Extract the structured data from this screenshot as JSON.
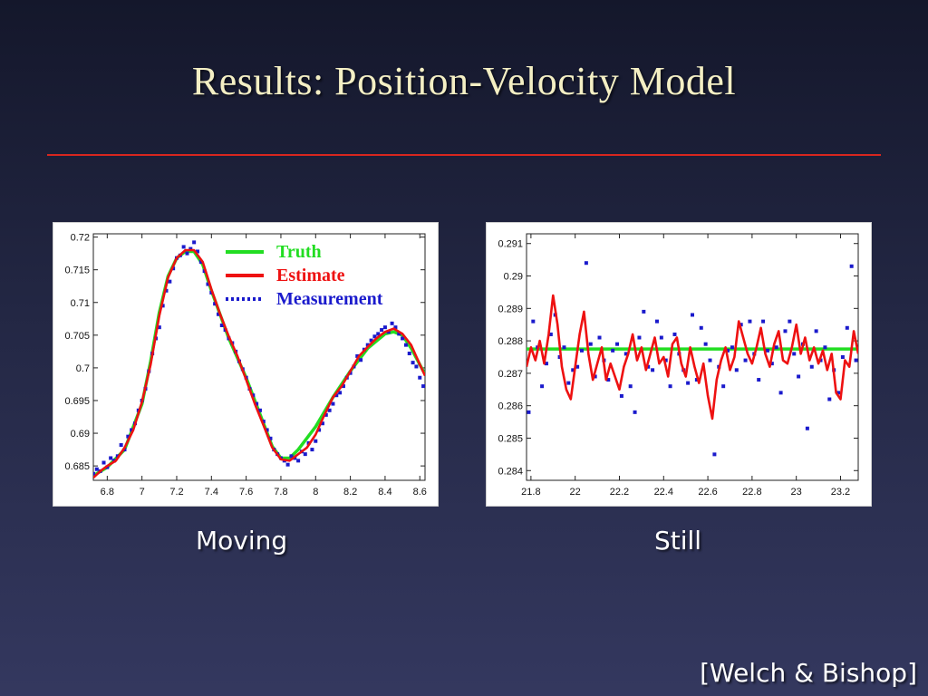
{
  "slide": {
    "title": "Results: Position-Velocity Model",
    "citation": "[Welch & Bishop]"
  },
  "colors": {
    "truth": "#22dd22",
    "estimate": "#ee1111",
    "measurement": "#1a1acc",
    "rule": "#d7261f"
  },
  "chart_data": [
    {
      "type": "line",
      "caption": "Moving",
      "xlim": [
        6.72,
        8.63
      ],
      "ylim": [
        0.6828,
        0.7205
      ],
      "xticks": [
        "6.8",
        "7",
        "7.2",
        "7.4",
        "7.6",
        "7.8",
        "8",
        "8.2",
        "8.4",
        "8.6"
      ],
      "yticks": [
        "0.685",
        "0.69",
        "0.695",
        "0.7",
        "0.705",
        "0.71",
        "0.715",
        "0.72"
      ],
      "legend": {
        "position": "top-right",
        "entries": [
          "Truth",
          "Estimate",
          "Measurement"
        ]
      },
      "series": [
        {
          "name": "Truth",
          "kind": "line",
          "x": [
            6.72,
            6.8,
            6.9,
            7.0,
            7.05,
            7.1,
            7.15,
            7.2,
            7.25,
            7.3,
            7.35,
            7.4,
            7.5,
            7.6,
            7.7,
            7.75,
            7.8,
            7.85,
            7.9,
            8.0,
            8.1,
            8.2,
            8.3,
            8.4,
            8.45,
            8.5,
            8.55,
            8.63
          ],
          "y": [
            0.6835,
            0.6848,
            0.6875,
            0.6945,
            0.701,
            0.7085,
            0.714,
            0.7168,
            0.7178,
            0.7178,
            0.7158,
            0.7118,
            0.7045,
            0.6985,
            0.6915,
            0.688,
            0.6862,
            0.6862,
            0.6875,
            0.691,
            0.6955,
            0.6995,
            0.703,
            0.7052,
            0.7055,
            0.705,
            0.703,
            0.699
          ]
        },
        {
          "name": "Estimate",
          "kind": "line",
          "x": [
            6.72,
            6.76,
            6.8,
            6.85,
            6.9,
            6.95,
            7.0,
            7.05,
            7.1,
            7.15,
            7.2,
            7.25,
            7.3,
            7.35,
            7.4,
            7.45,
            7.5,
            7.55,
            7.6,
            7.65,
            7.7,
            7.75,
            7.8,
            7.85,
            7.9,
            7.95,
            8.0,
            8.05,
            8.1,
            8.15,
            8.2,
            8.25,
            8.3,
            8.35,
            8.4,
            8.45,
            8.5,
            8.55,
            8.6,
            8.63
          ],
          "y": [
            0.6832,
            0.6842,
            0.685,
            0.6858,
            0.6878,
            0.6905,
            0.6948,
            0.7005,
            0.708,
            0.7138,
            0.7168,
            0.718,
            0.718,
            0.7162,
            0.712,
            0.7082,
            0.7048,
            0.7018,
            0.6982,
            0.6945,
            0.6912,
            0.6878,
            0.686,
            0.6858,
            0.6868,
            0.6878,
            0.6898,
            0.6928,
            0.6955,
            0.6972,
            0.6995,
            0.7018,
            0.7032,
            0.7045,
            0.7055,
            0.706,
            0.7052,
            0.7035,
            0.7005,
            0.6988
          ]
        },
        {
          "name": "Measurement",
          "kind": "points",
          "x": [
            6.72,
            6.74,
            6.76,
            6.78,
            6.8,
            6.82,
            6.84,
            6.86,
            6.88,
            6.9,
            6.92,
            6.94,
            6.96,
            6.98,
            7.0,
            7.02,
            7.04,
            7.06,
            7.08,
            7.1,
            7.12,
            7.14,
            7.16,
            7.18,
            7.2,
            7.22,
            7.24,
            7.26,
            7.28,
            7.3,
            7.32,
            7.34,
            7.36,
            7.38,
            7.4,
            7.42,
            7.44,
            7.46,
            7.48,
            7.5,
            7.52,
            7.54,
            7.56,
            7.58,
            7.6,
            7.62,
            7.64,
            7.66,
            7.68,
            7.7,
            7.72,
            7.74,
            7.76,
            7.78,
            7.8,
            7.82,
            7.84,
            7.86,
            7.88,
            7.9,
            7.92,
            7.94,
            7.96,
            7.98,
            8.0,
            8.02,
            8.04,
            8.06,
            8.08,
            8.1,
            8.12,
            8.14,
            8.16,
            8.18,
            8.2,
            8.22,
            8.24,
            8.26,
            8.28,
            8.3,
            8.32,
            8.34,
            8.36,
            8.38,
            8.4,
            8.42,
            8.44,
            8.46,
            8.48,
            8.5,
            8.52,
            8.54,
            8.56,
            8.58,
            8.6,
            8.62
          ],
          "y": [
            0.6838,
            0.6845,
            0.6842,
            0.6855,
            0.6848,
            0.6862,
            0.6858,
            0.6865,
            0.6882,
            0.6875,
            0.6895,
            0.6905,
            0.6915,
            0.6935,
            0.695,
            0.6968,
            0.6995,
            0.7022,
            0.7045,
            0.7062,
            0.7095,
            0.7118,
            0.7132,
            0.7152,
            0.7168,
            0.7172,
            0.7185,
            0.7175,
            0.7182,
            0.7192,
            0.7178,
            0.7162,
            0.7148,
            0.7128,
            0.7115,
            0.7098,
            0.7082,
            0.7065,
            0.7058,
            0.7045,
            0.7038,
            0.7025,
            0.701,
            0.6998,
            0.6985,
            0.6968,
            0.6958,
            0.6945,
            0.6935,
            0.6918,
            0.6905,
            0.6892,
            0.6875,
            0.6868,
            0.6862,
            0.6858,
            0.6852,
            0.6865,
            0.6862,
            0.6858,
            0.6872,
            0.6868,
            0.6885,
            0.6875,
            0.6888,
            0.6905,
            0.6915,
            0.6928,
            0.6935,
            0.6945,
            0.6958,
            0.6962,
            0.6972,
            0.6985,
            0.6992,
            0.7002,
            0.7018,
            0.7012,
            0.7028,
            0.7035,
            0.7042,
            0.7048,
            0.7052,
            0.7058,
            0.7062,
            0.7055,
            0.7068,
            0.7062,
            0.7052,
            0.7045,
            0.7035,
            0.7022,
            0.7008,
            0.7002,
            0.6985,
            0.6972
          ]
        }
      ]
    },
    {
      "type": "line",
      "caption": "Still",
      "xlim": [
        21.78,
        23.28
      ],
      "ylim": [
        0.2837,
        0.2913
      ],
      "xticks": [
        "21.8",
        "22",
        "22.2",
        "22.4",
        "22.6",
        "22.8",
        "23",
        "23.2"
      ],
      "yticks": [
        "0.284",
        "0.285",
        "0.286",
        "0.287",
        "0.288",
        "0.289",
        "0.29",
        "0.291"
      ],
      "series": [
        {
          "name": "Truth",
          "kind": "line",
          "x": [
            21.78,
            23.28
          ],
          "y": [
            0.28775,
            0.28775
          ]
        },
        {
          "name": "Estimate",
          "kind": "line",
          "x": [
            21.78,
            21.8,
            21.82,
            21.84,
            21.86,
            21.88,
            21.9,
            21.92,
            21.94,
            21.96,
            21.98,
            22.0,
            22.02,
            22.04,
            22.06,
            22.08,
            22.1,
            22.12,
            22.14,
            22.16,
            22.18,
            22.2,
            22.22,
            22.24,
            22.26,
            22.28,
            22.3,
            22.32,
            22.34,
            22.36,
            22.38,
            22.4,
            22.42,
            22.44,
            22.46,
            22.48,
            22.5,
            22.52,
            22.54,
            22.56,
            22.58,
            22.6,
            22.62,
            22.64,
            22.66,
            22.68,
            22.7,
            22.72,
            22.74,
            22.76,
            22.78,
            22.8,
            22.82,
            22.84,
            22.86,
            22.88,
            22.9,
            22.92,
            22.94,
            22.96,
            22.98,
            23.0,
            23.02,
            23.04,
            23.06,
            23.08,
            23.1,
            23.12,
            23.14,
            23.16,
            23.18,
            23.2,
            23.22,
            23.24,
            23.26,
            23.28
          ],
          "y": [
            0.2872,
            0.2878,
            0.2874,
            0.288,
            0.2873,
            0.2882,
            0.2894,
            0.2885,
            0.2872,
            0.2865,
            0.2862,
            0.2872,
            0.2882,
            0.2889,
            0.2876,
            0.2868,
            0.2873,
            0.2878,
            0.2868,
            0.2873,
            0.2869,
            0.2865,
            0.2872,
            0.2876,
            0.2882,
            0.2874,
            0.2878,
            0.2871,
            0.2876,
            0.2881,
            0.2873,
            0.2875,
            0.2869,
            0.2879,
            0.2881,
            0.2873,
            0.2869,
            0.2878,
            0.2872,
            0.2867,
            0.2873,
            0.2863,
            0.2856,
            0.2868,
            0.2874,
            0.2878,
            0.2871,
            0.2875,
            0.2886,
            0.2881,
            0.2876,
            0.2873,
            0.2878,
            0.2884,
            0.2876,
            0.2872,
            0.2879,
            0.2883,
            0.2874,
            0.2873,
            0.2878,
            0.2885,
            0.2876,
            0.2881,
            0.2874,
            0.2878,
            0.2873,
            0.2877,
            0.2871,
            0.2876,
            0.2864,
            0.2862,
            0.2874,
            0.2872,
            0.2883,
            0.2876
          ]
        },
        {
          "name": "Measurement",
          "kind": "points",
          "x": [
            21.79,
            21.81,
            21.83,
            21.85,
            21.87,
            21.89,
            21.91,
            21.93,
            21.95,
            21.97,
            21.99,
            22.01,
            22.03,
            22.05,
            22.07,
            22.09,
            22.11,
            22.13,
            22.15,
            22.17,
            22.19,
            22.21,
            22.23,
            22.25,
            22.27,
            22.29,
            22.31,
            22.33,
            22.35,
            22.37,
            22.39,
            22.41,
            22.43,
            22.45,
            22.47,
            22.49,
            22.51,
            22.53,
            22.55,
            22.57,
            22.59,
            22.61,
            22.63,
            22.65,
            22.67,
            22.69,
            22.71,
            22.73,
            22.75,
            22.77,
            22.79,
            22.81,
            22.83,
            22.85,
            22.87,
            22.89,
            22.91,
            22.93,
            22.95,
            22.97,
            22.99,
            23.01,
            23.03,
            23.05,
            23.07,
            23.09,
            23.11,
            23.13,
            23.15,
            23.17,
            23.19,
            23.21,
            23.23,
            23.25,
            23.27
          ],
          "y": [
            0.2858,
            0.2886,
            0.2878,
            0.2866,
            0.2873,
            0.2882,
            0.2888,
            0.2875,
            0.2878,
            0.2867,
            0.2871,
            0.2872,
            0.2877,
            0.2904,
            0.2879,
            0.2869,
            0.2881,
            0.2874,
            0.2868,
            0.2877,
            0.2879,
            0.2863,
            0.2876,
            0.2866,
            0.2858,
            0.2881,
            0.2889,
            0.2872,
            0.2871,
            0.2886,
            0.2881,
            0.2874,
            0.2866,
            0.2882,
            0.2876,
            0.2871,
            0.2867,
            0.2888,
            0.2868,
            0.2884,
            0.2879,
            0.2874,
            0.2845,
            0.2872,
            0.2866,
            0.2877,
            0.2878,
            0.2871,
            0.2885,
            0.2874,
            0.2886,
            0.2876,
            0.2868,
            0.2886,
            0.2877,
            0.2873,
            0.2878,
            0.2864,
            0.2883,
            0.2886,
            0.2876,
            0.2869,
            0.2879,
            0.2853,
            0.2872,
            0.2883,
            0.2874,
            0.2878,
            0.2862,
            0.2871,
            0.2864,
            0.2875,
            0.2884,
            0.2903,
            0.2874
          ]
        }
      ]
    }
  ]
}
